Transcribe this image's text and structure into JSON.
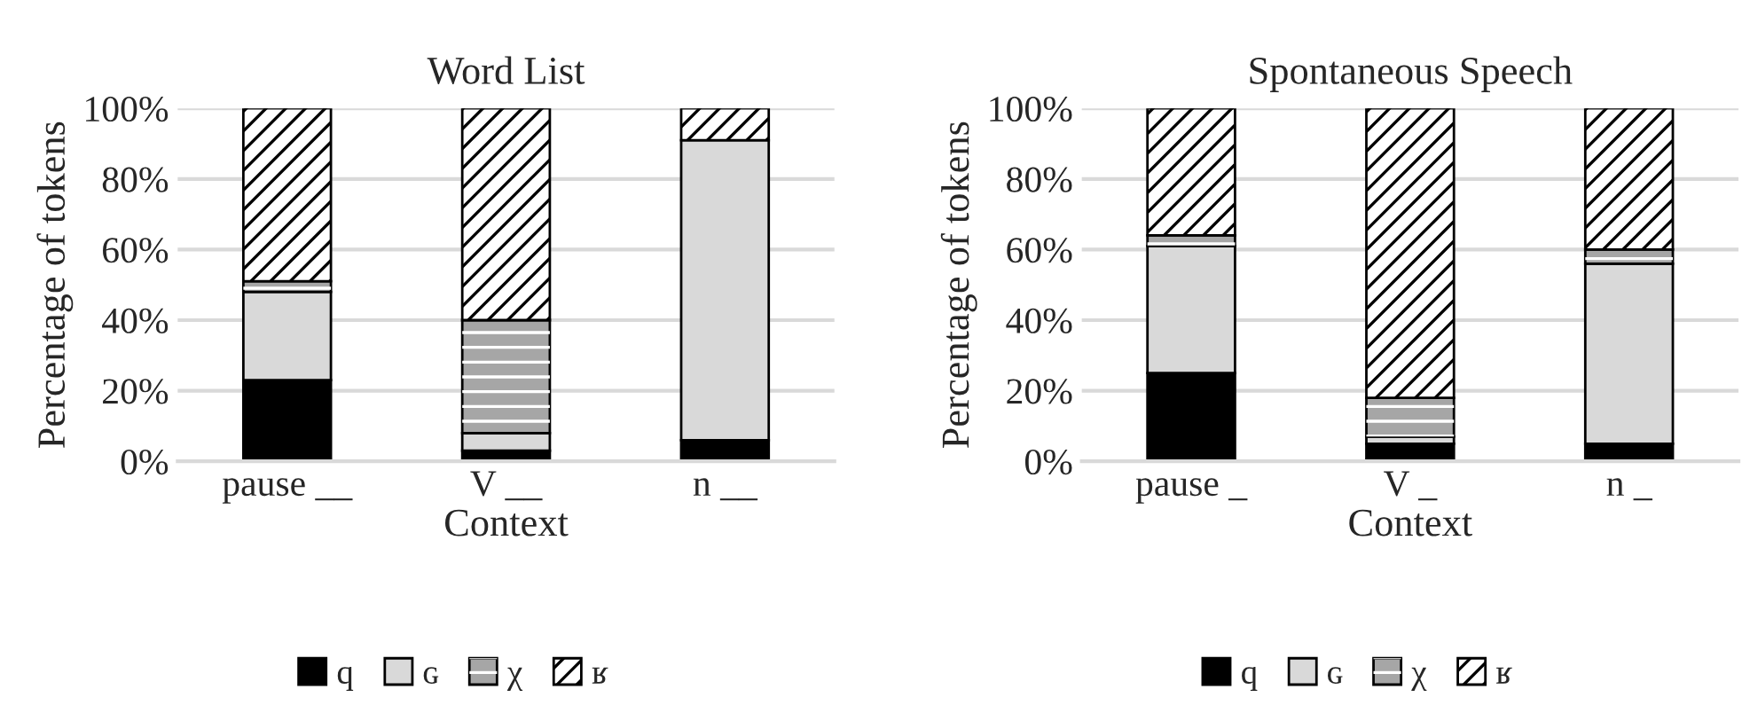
{
  "chart_data": [
    {
      "type": "bar",
      "stacked": true,
      "title": "Word List",
      "xlabel": "Context",
      "ylabel": "Percentage of tokens",
      "categories": [
        "pause __",
        "V __",
        "n __"
      ],
      "series": [
        {
          "name": "q",
          "color": "#000000",
          "values": [
            23,
            3,
            6
          ]
        },
        {
          "name": "ɢ",
          "color": "#d9d9d9",
          "values": [
            25,
            5,
            85
          ]
        },
        {
          "name": "χ",
          "color": "#a6a6a6",
          "values": [
            3,
            32,
            0
          ]
        },
        {
          "name": "ʁ",
          "color": "#ffffff",
          "values": [
            49,
            60,
            9
          ]
        }
      ],
      "ylim": [
        0,
        100
      ],
      "yticks": [
        {
          "value": 0,
          "label": "0%"
        },
        {
          "value": 20,
          "label": "20%"
        },
        {
          "value": 40,
          "label": "40%"
        },
        {
          "value": 60,
          "label": "60%"
        },
        {
          "value": 80,
          "label": "80%"
        },
        {
          "value": 100,
          "label": "100%"
        }
      ],
      "grid": "y",
      "legend": "bottom"
    },
    {
      "type": "bar",
      "stacked": true,
      "title": "Spontaneous Speech",
      "xlabel": "Context",
      "ylabel": "Percentage of tokens",
      "categories": [
        "pause _",
        "V _",
        "n _"
      ],
      "series": [
        {
          "name": "q",
          "color": "#000000",
          "values": [
            25,
            5,
            5
          ]
        },
        {
          "name": "ɢ",
          "color": "#d9d9d9",
          "values": [
            36,
            2,
            51
          ]
        },
        {
          "name": "χ",
          "color": "#a6a6a6",
          "values": [
            3,
            11,
            4
          ]
        },
        {
          "name": "ʁ",
          "color": "#ffffff",
          "values": [
            36,
            82,
            40
          ]
        }
      ],
      "ylim": [
        0,
        100
      ],
      "yticks": [
        {
          "value": 0,
          "label": "0%"
        },
        {
          "value": 20,
          "label": "20%"
        },
        {
          "value": 40,
          "label": "40%"
        },
        {
          "value": 60,
          "label": "60%"
        },
        {
          "value": 80,
          "label": "80%"
        },
        {
          "value": 100,
          "label": "100%"
        }
      ],
      "grid": "y",
      "legend": "bottom"
    }
  ]
}
